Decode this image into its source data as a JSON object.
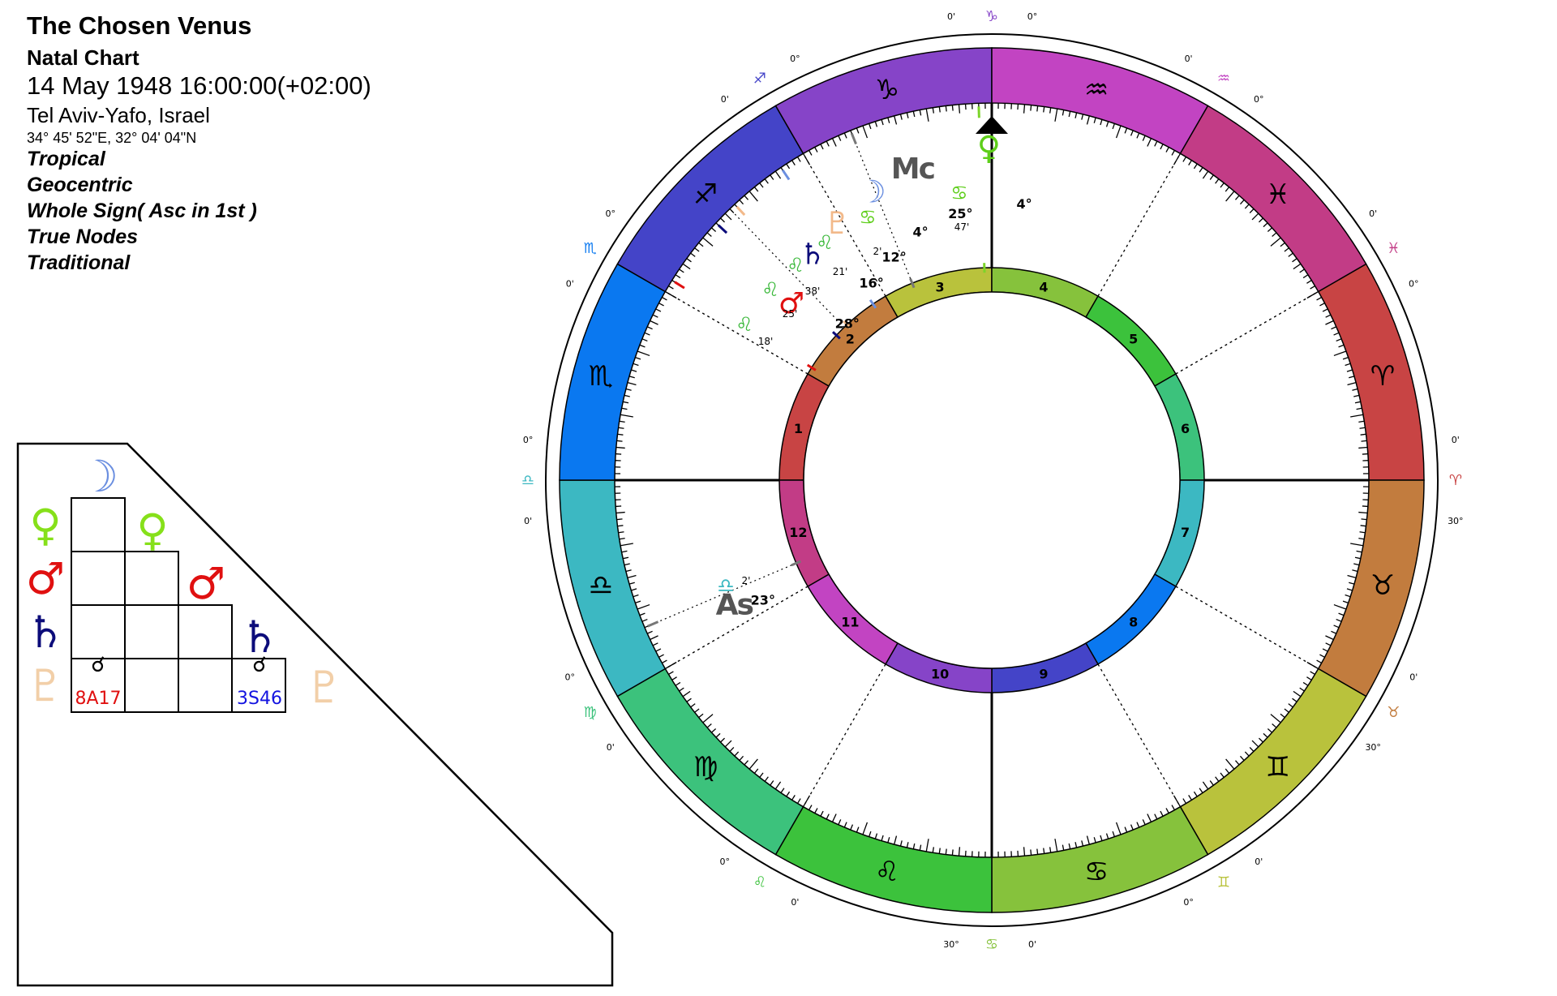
{
  "header": {
    "title": "The Chosen Venus",
    "chart_type": "Natal Chart",
    "datetime": "14 May 1948 16:00:00(+02:00)",
    "place": "Tel Aviv-Yafo, Israel",
    "coordinates": "34° 45' 52\"E, 32° 04' 04\"N",
    "settings": [
      "Tropical",
      "Geocentric",
      "Whole Sign( Asc in 1st )",
      "True Nodes",
      "Traditional"
    ]
  },
  "signs": [
    {
      "name": "Aries",
      "glyph": "♈",
      "color": "#c84444",
      "edge_label": "30°",
      "edge_min": "0'"
    },
    {
      "name": "Taurus",
      "glyph": "♉",
      "color": "#c27c3e",
      "edge_label": "30°",
      "edge_min": "0'"
    },
    {
      "name": "Gemini",
      "glyph": "♊",
      "color": "#b9c23c",
      "edge_label": "0°",
      "edge_min": "0'"
    },
    {
      "name": "Cancer",
      "glyph": "♋",
      "color": "#86c23c",
      "edge_label": "30°",
      "edge_min": "0'"
    },
    {
      "name": "Leo",
      "glyph": "♌",
      "color": "#3cc23c",
      "edge_label": "0°",
      "edge_min": "0'"
    },
    {
      "name": "Virgo",
      "glyph": "♍",
      "color": "#3cc27c",
      "edge_label": "0°",
      "edge_min": "0'"
    },
    {
      "name": "Libra",
      "glyph": "♎",
      "color": "#3cb8c2",
      "edge_label": "0°",
      "edge_min": "0'"
    },
    {
      "name": "Scorpio",
      "glyph": "♏",
      "color": "#0a78f0",
      "edge_label": "0°",
      "edge_min": "0'"
    },
    {
      "name": "Sagittarius",
      "glyph": "♐",
      "color": "#4444c8",
      "edge_label": "0°",
      "edge_min": "0'"
    },
    {
      "name": "Capricorn",
      "glyph": "♑",
      "color": "#8644c8",
      "edge_label": "0°",
      "edge_min": "0'"
    },
    {
      "name": "Aquarius",
      "glyph": "♒",
      "color": "#c244c2",
      "edge_label": "0°",
      "edge_min": "0'"
    },
    {
      "name": "Pisces",
      "glyph": "♓",
      "color": "#c23c86",
      "edge_label": "0°",
      "edge_min": "0'"
    }
  ],
  "houses": [
    {
      "num": "1",
      "color": "#c84444"
    },
    {
      "num": "2",
      "color": "#c27c3e"
    },
    {
      "num": "3",
      "color": "#b9c23c"
    },
    {
      "num": "4",
      "color": "#86c23c"
    },
    {
      "num": "5",
      "color": "#3cc23c"
    },
    {
      "num": "6",
      "color": "#3cc27c"
    },
    {
      "num": "7",
      "color": "#3cb8c2"
    },
    {
      "num": "8",
      "color": "#0a78f0"
    },
    {
      "num": "9",
      "color": "#4444c8"
    },
    {
      "num": "10",
      "color": "#8644c8"
    },
    {
      "num": "11",
      "color": "#c244c2"
    },
    {
      "num": "12",
      "color": "#c23c86"
    }
  ],
  "points": [
    {
      "name": "Venus",
      "glyph": "♀",
      "color": "#5ece1a",
      "degree": "4°",
      "sign_glyph": "♋",
      "sign_color": "#5ece1a",
      "minutes": "47'"
    },
    {
      "name": "Midheaven",
      "glyph": "Mc",
      "color": "#555555",
      "degree": "25°",
      "sign_glyph": "♋",
      "sign_color": "#5ece1a",
      "minutes": "2'"
    },
    {
      "name": "Moon",
      "glyph": "☽",
      "color": "#6b8fe0",
      "degree": "4°",
      "sign_glyph": "♌",
      "sign_color": "#3cb93c",
      "minutes": "21'"
    },
    {
      "name": "Pluto",
      "glyph": "♇",
      "color": "#f2b98a",
      "degree": "12°",
      "sign_glyph": "♌",
      "sign_color": "#3cb93c",
      "minutes": "38'"
    },
    {
      "name": "Saturn",
      "glyph": "♄",
      "color": "#0c0c7a",
      "degree": "16°",
      "sign_glyph": "♌",
      "sign_color": "#3cb93c",
      "minutes": "25'"
    },
    {
      "name": "Mars",
      "glyph": "♂",
      "color": "#e01010",
      "degree": "28°",
      "sign_glyph": "♌",
      "sign_color": "#3cb93c",
      "minutes": "18'"
    },
    {
      "name": "Ascendant",
      "glyph": "As",
      "color": "#555555",
      "degree": "23°",
      "sign_glyph": "♎",
      "sign_color": "#3cb8c2",
      "minutes": "2'"
    }
  ],
  "aspect_grid": {
    "planets": [
      {
        "glyph": "☽",
        "color": "#6b8fe0"
      },
      {
        "glyph": "♀",
        "color": "#86e01a"
      },
      {
        "glyph": "♂",
        "color": "#e01010"
      },
      {
        "glyph": "♄",
        "color": "#0c0c7a"
      },
      {
        "glyph": "♇",
        "color": "#f2cfa8"
      }
    ],
    "aspects": [
      {
        "glyph": "☌",
        "orb": "8A17",
        "orb_color": "#e01010"
      },
      {
        "glyph": "☌",
        "orb": "3S46",
        "orb_color": "#1414e0"
      }
    ]
  }
}
